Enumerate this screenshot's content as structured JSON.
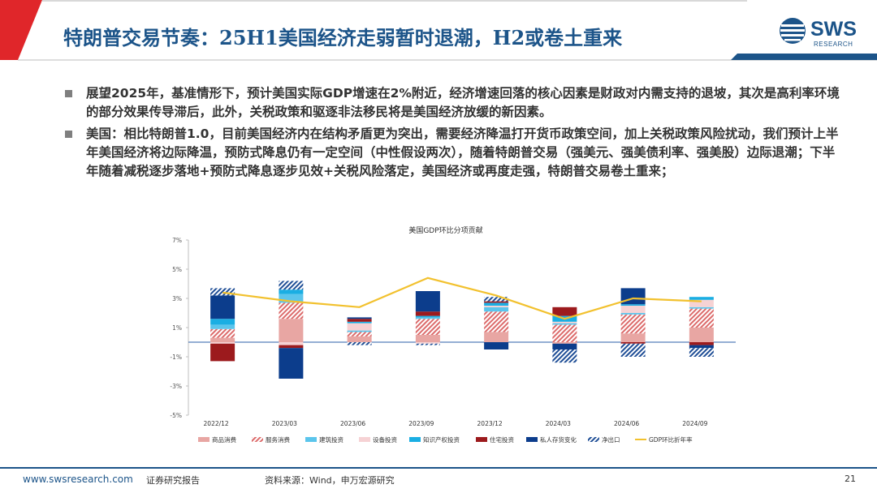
{
  "header": {
    "title": "特朗普交易节奏：25H1美国经济走弱暂时退潮，H2或卷土重来",
    "logo_text": "SWS",
    "logo_sub": "RESEARCH"
  },
  "bullets": [
    "展望2025年，基准情形下，预计美国实际GDP增速在2%附近，经济增速回落的核心因素是财政对内需支持的退坡，其次是高利率环境的部分效果传导滞后，此外，关税政策和驱逐非法移民将是美国经济放缓的新因素。",
    "美国：相比特朗普1.0，目前美国经济内在结构矛盾更为突出，需要经济降温打开货币政策空间，加上关税政策风险扰动，我们预计上半年美国经济将边际降温，预防式降息仍有一定空间（中性假设两次），随着特朗普交易（强美元、强美债利率、强美股）边际退潮；下半年随着减税逐步落地+预防式降息逐步见效+关税风险落定，美国经济或再度走强，特朗普交易卷土重来；"
  ],
  "colors": {
    "brand": "#1c5489",
    "accent_red": "#e0262a"
  },
  "chart_data": {
    "type": "bar",
    "stacked": true,
    "title": "美国GDP环比分项贡献",
    "categories": [
      "2022/12",
      "2023/03",
      "2023/06",
      "2023/09",
      "2023/12",
      "2024/03",
      "2024/06",
      "2024/09"
    ],
    "ylim": [
      -5,
      7
    ],
    "yticks": [
      "7%",
      "5%",
      "3%",
      "1%",
      "-1%",
      "-3%",
      "-5%"
    ],
    "ytick_values": [
      7,
      5,
      3,
      1,
      -1,
      -3,
      -5
    ],
    "legend_position": "bottom",
    "series": [
      {
        "name": "商品消费",
        "color": "#e8a6a3",
        "pattern": "solid",
        "values": [
          0.3,
          1.6,
          0.4,
          0.5,
          0.7,
          -0.1,
          0.6,
          1.0
        ]
      },
      {
        "name": "服务消费",
        "color": "#dc6b6b",
        "pattern": "hatch",
        "values": [
          0.6,
          1.1,
          0.3,
          1.1,
          1.4,
          1.2,
          1.3,
          1.3
        ]
      },
      {
        "name": "建筑投资",
        "color": "#5bc5ec",
        "pattern": "solid",
        "values": [
          0.3,
          0.6,
          0.1,
          0.1,
          0.3,
          0.1,
          0.1,
          0.1
        ]
      },
      {
        "name": "设备投资",
        "color": "#f6d2d4",
        "pattern": "solid",
        "values": [
          -0.1,
          -0.2,
          0.5,
          -0.1,
          0.1,
          0.1,
          0.5,
          0.5
        ]
      },
      {
        "name": "知识产权投资",
        "color": "#1aaee3",
        "pattern": "solid",
        "values": [
          0.4,
          0.3,
          0.1,
          0.1,
          0.2,
          0.4,
          0.1,
          0.2
        ]
      },
      {
        "name": "住宅投资",
        "color": "#9c1a1d",
        "pattern": "solid",
        "values": [
          -1.2,
          -0.2,
          0.2,
          0.3,
          0.1,
          0.6,
          -0.1,
          -0.2
        ]
      },
      {
        "name": "私人存货变化",
        "color": "#0c3d8c",
        "pattern": "solid",
        "values": [
          1.6,
          -2.1,
          0.1,
          1.4,
          -0.5,
          -0.4,
          1.1,
          -0.2
        ]
      },
      {
        "name": "净出口",
        "color": "#1f4e96",
        "pattern": "hatch",
        "values": [
          0.5,
          0.6,
          -0.2,
          -0.1,
          0.3,
          -0.9,
          -0.9,
          -0.6
        ]
      },
      {
        "name": "GDP环比折年率",
        "color": "#f2c12e",
        "type": "line",
        "values": [
          3.4,
          2.8,
          2.4,
          4.4,
          3.2,
          1.6,
          3.0,
          2.8
        ]
      }
    ]
  },
  "footer": {
    "website": "www.swsresearch.com",
    "report_type": "证券研究报告",
    "source": "资料来源：Wind，申万宏源研究",
    "page": "21"
  }
}
